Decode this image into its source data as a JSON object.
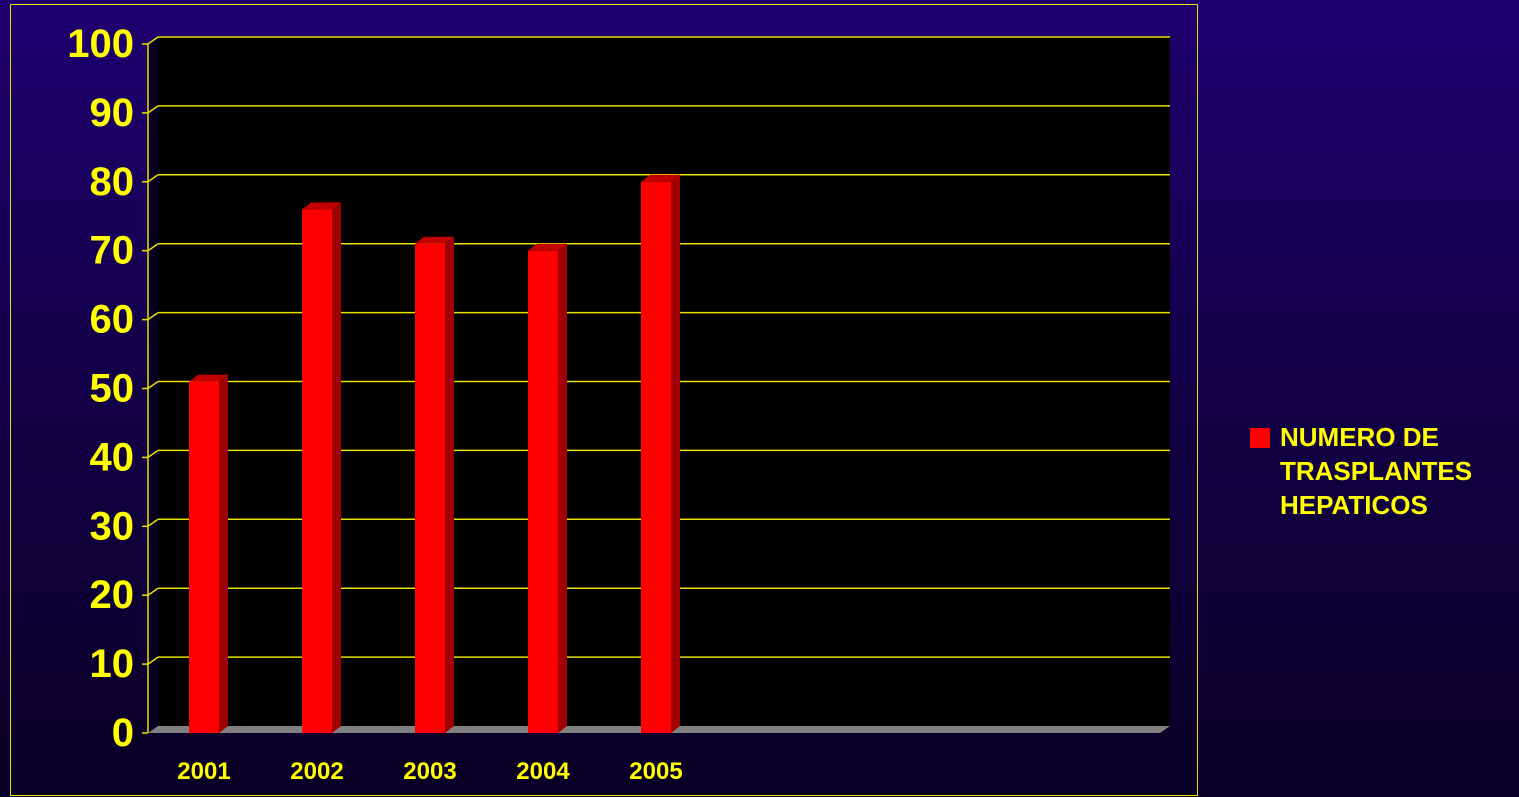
{
  "chart_data": {
    "type": "bar",
    "categories": [
      "2001",
      "2002",
      "2003",
      "2004",
      "2005"
    ],
    "series": [
      {
        "name": "NUMERO DE TRASPLANTES HEPATICOS",
        "values": [
          51,
          76,
          71,
          70,
          80
        ],
        "color": "#ff0000"
      }
    ],
    "ylim": [
      0,
      100
    ],
    "yticks": [
      "0",
      "10",
      "20",
      "30",
      "40",
      "50",
      "60",
      "70",
      "80",
      "90",
      "100"
    ],
    "grid": true,
    "legend_position": "right",
    "colors": {
      "text": "#ffff00",
      "grid": "#e8e000",
      "bar_front": "#ff0000",
      "bar_side": "#a00000",
      "bar_top": "#c00000",
      "floor": "#808080"
    }
  },
  "legend": {
    "label": "NUMERO DE\nTRASPLANTES\nHEPATICOS"
  }
}
